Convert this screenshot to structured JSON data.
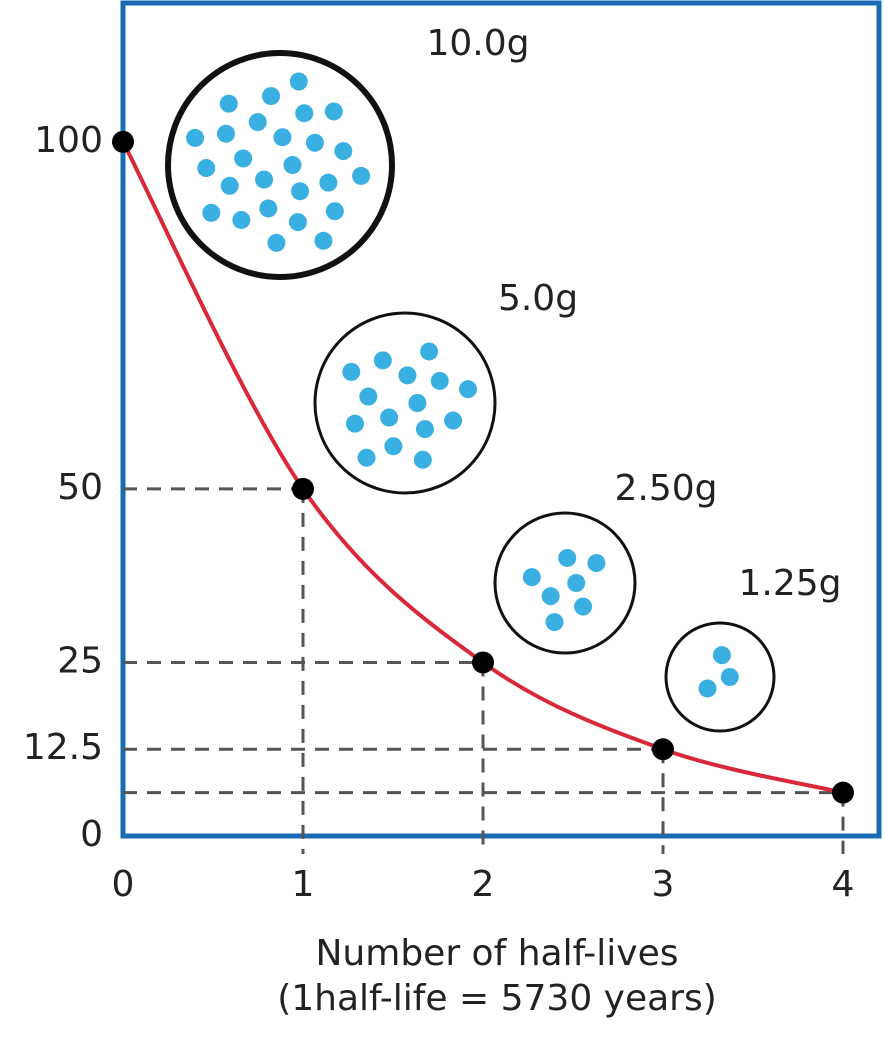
{
  "chart_data": {
    "type": "line",
    "x": [
      0,
      1,
      2,
      3,
      4
    ],
    "series": [
      {
        "color": "#d8283a",
        "values": [
          100,
          50,
          25,
          12.5,
          6.25
        ]
      }
    ],
    "xlim": [
      0,
      4.2
    ],
    "xticks": [
      0,
      1,
      2,
      3,
      4
    ],
    "ylim": [
      0,
      120
    ],
    "yticks": [
      0,
      12.5,
      25,
      50,
      100
    ],
    "x_label": [
      "Number of half-lives",
      "(1half-life = 5730 years)"
    ],
    "annotations": [
      "10.0g",
      "5.0g",
      "2.50g",
      "1.25g"
    ],
    "frame_color": "#1a6bb5",
    "dot_color": "#3ab0e2"
  }
}
